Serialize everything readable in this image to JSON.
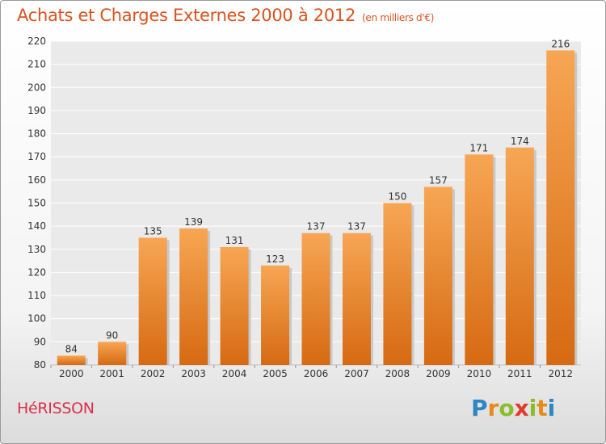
{
  "title": "Achats et Charges Externes 2000 à 2012",
  "subtitle": "(en milliers d'€)",
  "town": "HéRISSON",
  "logo": {
    "letters": [
      "P",
      "r",
      "o",
      "x",
      "i",
      "t",
      "i"
    ],
    "colors": [
      "#2d86c6",
      "#e8891c",
      "#8abd2b",
      "#e23a2a",
      "#8abd2b",
      "#e8891c",
      "#2d86c6"
    ]
  },
  "colors": {
    "bar_top": "#f7a654",
    "bar_bottom": "#d66a12",
    "title": "#d9531f",
    "town": "#d9304a",
    "plot_bg": "#eaeaea"
  },
  "chart_data": {
    "type": "bar",
    "categories": [
      "2000",
      "2001",
      "2002",
      "2003",
      "2004",
      "2005",
      "2006",
      "2007",
      "2008",
      "2009",
      "2010",
      "2011",
      "2012"
    ],
    "values": [
      84,
      90,
      135,
      139,
      131,
      123,
      137,
      137,
      150,
      157,
      171,
      174,
      216
    ],
    "ylim": [
      80,
      220
    ],
    "yticks": [
      80,
      90,
      100,
      110,
      120,
      130,
      140,
      150,
      160,
      170,
      180,
      190,
      200,
      210,
      220
    ],
    "grid": true,
    "data_labels": true
  }
}
